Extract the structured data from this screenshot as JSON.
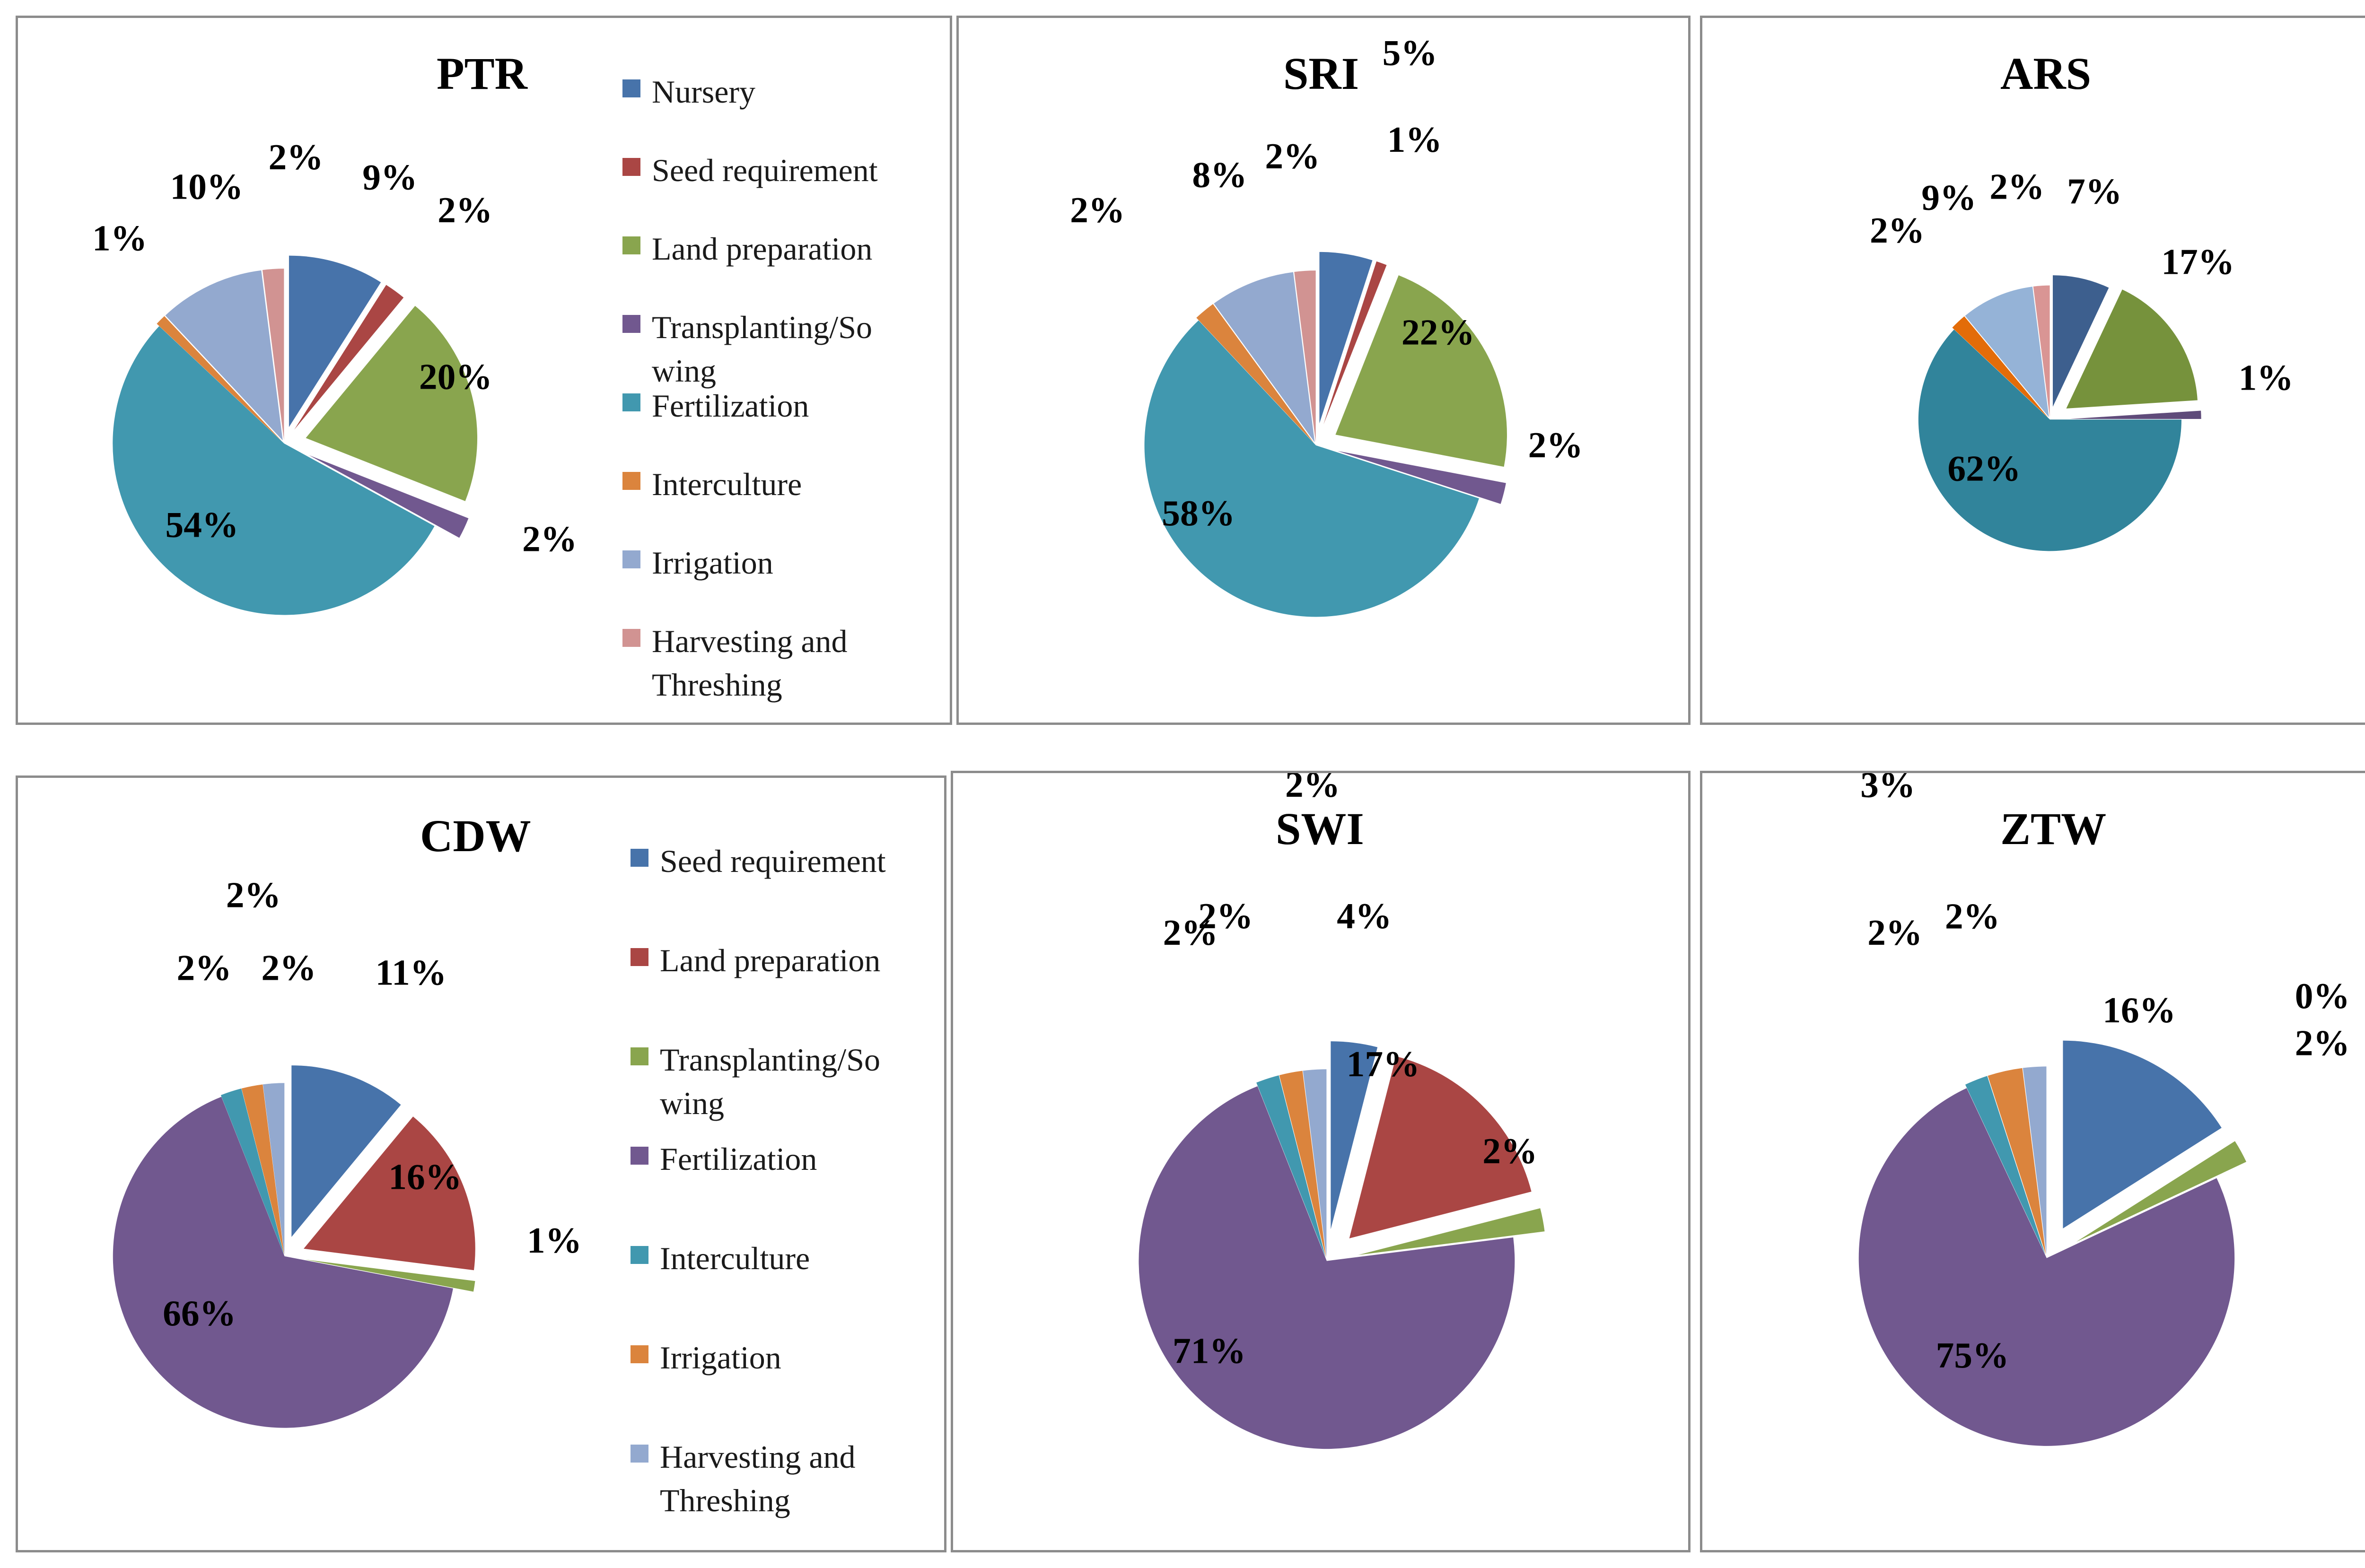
{
  "colors": {
    "blue": "#4773AA",
    "red": "#AA4644",
    "green": "#89A54E",
    "purple": "#71588F",
    "teal": "#4198AF",
    "orange": "#DB843D",
    "lightblue": "#93A9CF",
    "pink": "#D19392",
    "ars_blue": "#3D5F8E",
    "ars_green": "#76923C",
    "ars_purple": "#5F4B7A",
    "ars_teal": "#31849B",
    "ars_orange": "#E36C09",
    "ars_lightblue": "#95B3D7",
    "ars_pink": "#D99594"
  },
  "legends": {
    "top": [
      {
        "label": "Nursery",
        "color": "#4773AA"
      },
      {
        "label": "Seed requirement",
        "color": "#AA4644"
      },
      {
        "label": "Land preparation",
        "color": "#89A54E"
      },
      {
        "label": "Transplanting/So\nwing",
        "color": "#71588F"
      },
      {
        "label": "Fertilization",
        "color": "#4198AF"
      },
      {
        "label": "Interculture",
        "color": "#DB843D"
      },
      {
        "label": "Irrigation",
        "color": "#93A9CF"
      },
      {
        "label": "Harvesting and\nThreshing",
        "color": "#D19392"
      }
    ],
    "bottom": [
      {
        "label": "Seed requirement",
        "color": "#4773AA"
      },
      {
        "label": "Land preparation",
        "color": "#AA4644"
      },
      {
        "label": "Transplanting/So\nwing",
        "color": "#89A54E"
      },
      {
        "label": "Fertilization",
        "color": "#71588F"
      },
      {
        "label": "Interculture",
        "color": "#4198AF"
      },
      {
        "label": "Irrigation",
        "color": "#DB843D"
      },
      {
        "label": "Harvesting and\nThreshing",
        "color": "#93A9CF"
      }
    ]
  },
  "chart_data": [
    {
      "type": "pie",
      "title": "PTR",
      "categories": [
        "Nursery",
        "Seed requirement",
        "Land preparation",
        "Transplanting/Sowing",
        "Fertilization",
        "Interculture",
        "Irrigation",
        "Harvesting and Threshing"
      ],
      "values": [
        9,
        2,
        20,
        2,
        54,
        1,
        10,
        2
      ],
      "data_labels": [
        "9%",
        "2%",
        "20%",
        "2%",
        "54%",
        "1%",
        "10%",
        "2%"
      ],
      "colors": [
        "#4773AA",
        "#AA4644",
        "#89A54E",
        "#71588F",
        "#4198AF",
        "#DB843D",
        "#93A9CF",
        "#D19392"
      ],
      "exploded": true,
      "legend": "right"
    },
    {
      "type": "pie",
      "title": "SRI",
      "categories": [
        "Nursery",
        "Seed requirement",
        "Land preparation",
        "Transplanting/Sowing",
        "Fertilization",
        "Interculture",
        "Irrigation",
        "Harvesting and Threshing"
      ],
      "values": [
        5,
        1,
        22,
        2,
        58,
        2,
        8,
        2
      ],
      "data_labels": [
        "5%",
        "1%",
        "22%",
        "2%",
        "58%",
        "2%",
        "8%",
        "2%"
      ],
      "colors": [
        "#4773AA",
        "#AA4644",
        "#89A54E",
        "#71588F",
        "#4198AF",
        "#DB843D",
        "#93A9CF",
        "#D19392"
      ],
      "exploded": true
    },
    {
      "type": "pie",
      "title": "ARS",
      "categories": [
        "Nursery",
        "Land preparation",
        "Transplanting/Sowing",
        "Fertilization",
        "Interculture",
        "Irrigation",
        "Harvesting and Threshing"
      ],
      "values": [
        7,
        17,
        1,
        62,
        2,
        9,
        2
      ],
      "data_labels": [
        "7%",
        "17%",
        "1%",
        "62%",
        "2%",
        "9%",
        "2%"
      ],
      "colors": [
        "#3D5F8E",
        "#76923C",
        "#5F4B7A",
        "#31849B",
        "#E36C09",
        "#95B3D7",
        "#D99594"
      ],
      "exploded": true
    },
    {
      "type": "pie",
      "title": "CDW",
      "categories": [
        "Seed requirement",
        "Land preparation",
        "Transplanting/Sowing",
        "Fertilization",
        "Interculture",
        "Irrigation",
        "Harvesting and Threshing"
      ],
      "values": [
        11,
        16,
        1,
        66,
        2,
        2,
        2
      ],
      "data_labels": [
        "11%",
        "16%",
        "1%",
        "66%",
        "2%",
        "2%",
        "2%"
      ],
      "colors": [
        "#4773AA",
        "#AA4644",
        "#89A54E",
        "#71588F",
        "#4198AF",
        "#DB843D",
        "#93A9CF"
      ],
      "exploded": true,
      "legend": "right"
    },
    {
      "type": "pie",
      "title": "SWI",
      "categories": [
        "Seed requirement",
        "Land preparation",
        "Transplanting/Sowing",
        "Fertilization",
        "Interculture",
        "Irrigation",
        "Harvesting and Threshing"
      ],
      "values": [
        4,
        17,
        2,
        71,
        2,
        2,
        2
      ],
      "data_labels": [
        "4%",
        "17%",
        "2%",
        "71%",
        "2%",
        "2%",
        "2%"
      ],
      "colors": [
        "#4773AA",
        "#AA4644",
        "#89A54E",
        "#71588F",
        "#4198AF",
        "#DB843D",
        "#93A9CF"
      ],
      "exploded": true
    },
    {
      "type": "pie",
      "title": "ZTW",
      "categories": [
        "Seed requirement",
        "Land preparation",
        "Transplanting/Sowing",
        "Fertilization",
        "Interculture",
        "Irrigation",
        "Harvesting and Threshing"
      ],
      "values": [
        16,
        0,
        2,
        75,
        2,
        3,
        2
      ],
      "data_labels": [
        "16%",
        "0%",
        "2%",
        "75%",
        "2%",
        "3%",
        "2%"
      ],
      "colors": [
        "#4773AA",
        "#AA4644",
        "#89A54E",
        "#71588F",
        "#4198AF",
        "#DB843D",
        "#93A9CF"
      ],
      "exploded": true
    }
  ]
}
